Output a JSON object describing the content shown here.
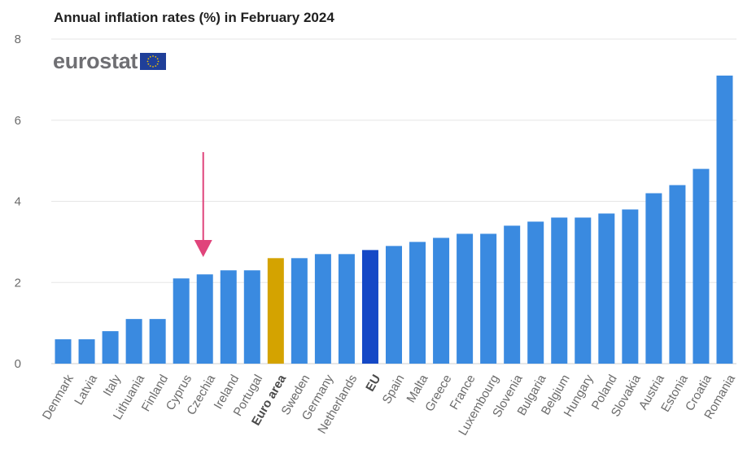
{
  "chart_data": {
    "type": "bar",
    "title": "Annual inflation rates (%) in February 2024",
    "ylim": [
      0,
      8
    ],
    "yticks": [
      0,
      2,
      4,
      6,
      8
    ],
    "grid": true,
    "categories": [
      "Denmark",
      "Latvia",
      "Italy",
      "Lithuania",
      "Finland",
      "Cyprus",
      "Czechia",
      "Ireland",
      "Portugal",
      "Euro area",
      "Sweden",
      "Germany",
      "Netherlands",
      "EU",
      "Spain",
      "Malta",
      "Greece",
      "France",
      "Luxembourg",
      "Slovenia",
      "Bulgaria",
      "Belgium",
      "Hungary",
      "Poland",
      "Slovakia",
      "Austria",
      "Estonia",
      "Croatia",
      "Romania"
    ],
    "values": [
      0.6,
      0.6,
      0.8,
      1.1,
      1.1,
      2.1,
      2.2,
      2.3,
      2.3,
      2.6,
      2.6,
      2.7,
      2.7,
      2.8,
      2.9,
      3.0,
      3.1,
      3.2,
      3.2,
      3.4,
      3.5,
      3.6,
      3.6,
      3.7,
      3.8,
      4.2,
      4.4,
      4.8,
      7.1
    ],
    "bold_categories": [
      "Euro area",
      "EU"
    ],
    "highlight": "Czechia",
    "colors": {
      "default": "#3a8ae0",
      "Euro area": "#d4a300",
      "EU": "#1548c6",
      "arrow": "#e0447b",
      "grid": "#e6e6e6"
    }
  },
  "logo": {
    "text": "eurostat",
    "flag_color": "#1f3f99",
    "star_color": "#f2c300"
  }
}
